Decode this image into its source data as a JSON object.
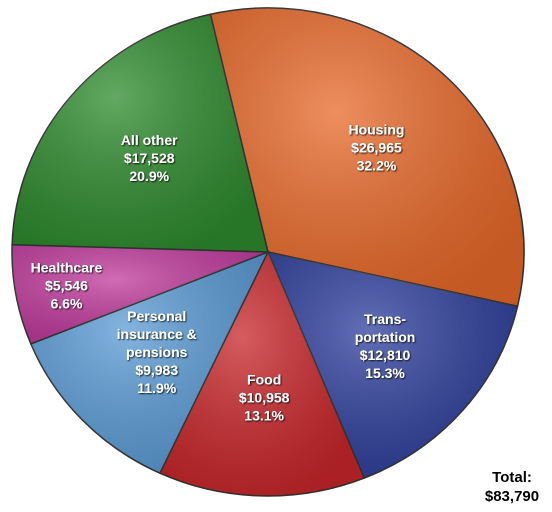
{
  "chart_data": {
    "type": "pie",
    "categories": [
      [
        "Housing"
      ],
      [
        "Trans-",
        "portation"
      ],
      [
        "Food"
      ],
      [
        "Personal",
        "insurance &",
        "pensions"
      ],
      [
        "Healthcare"
      ],
      [
        "All other"
      ]
    ],
    "values": [
      26965,
      12810,
      10958,
      9983,
      5546,
      17528
    ],
    "value_labels": [
      "$26,965",
      "$12,810",
      "$10,958",
      "$9,983",
      "$5,546",
      "$17,528"
    ],
    "percentages": [
      32.2,
      15.3,
      13.1,
      11.9,
      6.6,
      20.9
    ],
    "percentage_labels": [
      "32.2%",
      "15.3%",
      "13.1%",
      "11.9%",
      "6.6%",
      "20.9%"
    ],
    "colors": [
      "#e8692a",
      "#2e3f9c",
      "#c8262a",
      "#5b9bd5",
      "#c03a9c",
      "#2e8b2e"
    ],
    "total": {
      "label": "Total:",
      "value": 83790,
      "value_label": "$83,790"
    }
  }
}
